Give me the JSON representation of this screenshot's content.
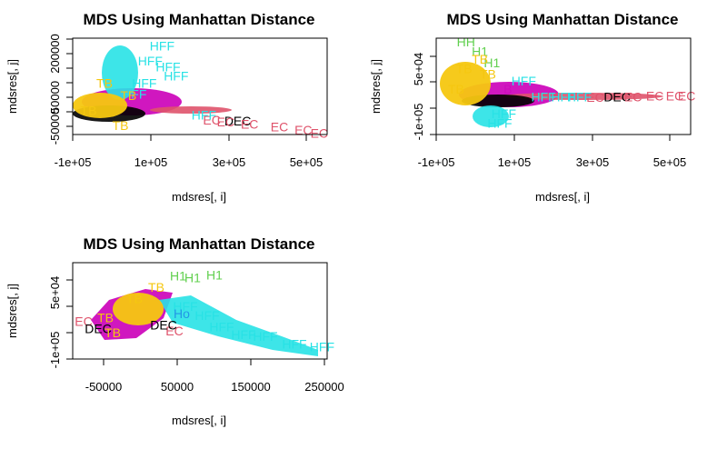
{
  "colors": {
    "black": "#000000",
    "red": "#DF536B",
    "green": "#61D04F",
    "blue": "#2297E6",
    "cyan": "#28E2E5",
    "magenta": "#CD0BBC",
    "gold": "#F5C710",
    "gray": "#9E9E9E"
  },
  "chart_data": [
    {
      "type": "scatter",
      "title": "MDS Using Manhattan Distance",
      "xlabel": "mdsres[, i]",
      "ylabel": "mdsres[, j]",
      "xticks": [
        "-1e+05",
        "1e+05",
        "3e+05",
        "5e+05"
      ],
      "xtick_values": [
        -100000,
        100000,
        300000,
        500000
      ],
      "yticks": [
        "-50000",
        "50000",
        "200000"
      ],
      "ytick_values": [
        -50000,
        50000,
        200000
      ],
      "xlim": [
        -100000,
        540000
      ],
      "ylim": [
        -60000,
        260000
      ],
      "grid": false,
      "points": [
        {
          "label": "DEC",
          "color": "black",
          "x": 315000,
          "y": -15000
        },
        {
          "label": "EC",
          "color": "red",
          "x": 345000,
          "y": -25000
        },
        {
          "label": "EC",
          "color": "red",
          "x": 420000,
          "y": -35000
        },
        {
          "label": "EC",
          "color": "red",
          "x": 480000,
          "y": -45000
        },
        {
          "label": "EC",
          "color": "red",
          "x": 520000,
          "y": -55000
        },
        {
          "label": "EC",
          "color": "red",
          "x": 250000,
          "y": -12000
        },
        {
          "label": "EC",
          "color": "red",
          "x": 285000,
          "y": -18000
        },
        {
          "label": "HFF",
          "color": "cyan",
          "x": 125000,
          "y": 235000
        },
        {
          "label": "HFF",
          "color": "cyan",
          "x": 95000,
          "y": 185000
        },
        {
          "label": "HFF",
          "color": "cyan",
          "x": 140000,
          "y": 165000
        },
        {
          "label": "HFF",
          "color": "cyan",
          "x": 160000,
          "y": 135000
        },
        {
          "label": "HFF",
          "color": "cyan",
          "x": 80000,
          "y": 110000
        },
        {
          "label": "HFF",
          "color": "cyan",
          "x": 55000,
          "y": 75000
        },
        {
          "label": "HFF",
          "color": "cyan",
          "x": 230000,
          "y": 5000
        },
        {
          "label": "TB",
          "color": "gold",
          "x": -20000,
          "y": 110000
        },
        {
          "label": "TB",
          "color": "gold",
          "x": 40000,
          "y": 70000
        },
        {
          "label": "TB",
          "color": "gold",
          "x": 20000,
          "y": -30000
        },
        {
          "label": "TB",
          "color": "gold",
          "x": -60000,
          "y": 20000
        }
      ]
    },
    {
      "type": "scatter",
      "title": "MDS Using Manhattan Distance",
      "xlabel": "mdsres[, i]",
      "ylabel": "mdsres[, j]",
      "xticks": [
        "-1e+05",
        "1e+05",
        "3e+05",
        "5e+05"
      ],
      "xtick_values": [
        -100000,
        100000,
        300000,
        500000
      ],
      "yticks": [
        "-1e+05",
        "5e+04"
      ],
      "ytick_values": [
        -100000,
        50000
      ],
      "xlim": [
        -100000,
        540000
      ],
      "ylim": [
        -100000,
        155000
      ],
      "grid": false,
      "points": [
        {
          "label": "DEC",
          "color": "black",
          "x": 355000,
          "y": 0
        },
        {
          "label": "EC",
          "color": "red",
          "x": 395000,
          "y": 0
        },
        {
          "label": "EC",
          "color": "red",
          "x": 450000,
          "y": 2000
        },
        {
          "label": "EC",
          "color": "red",
          "x": 500000,
          "y": 2000
        },
        {
          "label": "EC",
          "color": "red",
          "x": 530000,
          "y": 2000
        },
        {
          "label": "EC",
          "color": "red",
          "x": 300000,
          "y": -1000
        },
        {
          "label": "HFF",
          "color": "cyan",
          "x": 220000,
          "y": 0
        },
        {
          "label": "HFF",
          "color": "cyan",
          "x": 260000,
          "y": 0
        },
        {
          "label": "HFF",
          "color": "cyan",
          "x": 170000,
          "y": 0
        },
        {
          "label": "HFF",
          "color": "cyan",
          "x": 120000,
          "y": 42000
        },
        {
          "label": "HFF",
          "color": "cyan",
          "x": 70000,
          "y": -45000
        },
        {
          "label": "HFF",
          "color": "cyan",
          "x": 60000,
          "y": -70000
        },
        {
          "label": "HH",
          "color": "green",
          "x": -25000,
          "y": 145000
        },
        {
          "label": "H1",
          "color": "green",
          "x": 40000,
          "y": 90000
        },
        {
          "label": "H1",
          "color": "green",
          "x": 10000,
          "y": 120000
        },
        {
          "label": "TB",
          "color": "gold",
          "x": 10000,
          "y": 100000
        },
        {
          "label": "TB",
          "color": "gold",
          "x": -30000,
          "y": 75000
        },
        {
          "label": "TB",
          "color": "gold",
          "x": -50000,
          "y": 20000
        },
        {
          "label": "TB",
          "color": "gold",
          "x": 30000,
          "y": 60000
        },
        {
          "label": "B",
          "color": "magenta",
          "x": 80000,
          "y": 20000
        }
      ]
    },
    {
      "type": "scatter",
      "title": "MDS Using Manhattan Distance",
      "xlabel": "mdsres[, i]",
      "ylabel": "mdsres[, j]",
      "xticks": [
        "-50000",
        "50000",
        "150000",
        "250000"
      ],
      "xtick_values": [
        -50000,
        50000,
        150000,
        250000
      ],
      "yticks": [
        "-1e+05",
        "5e+04"
      ],
      "ytick_values": [
        -100000,
        50000
      ],
      "xlim": [
        -95000,
        255000
      ],
      "ylim": [
        -100000,
        155000
      ],
      "grid": false,
      "points": [
        {
          "label": "HFF",
          "color": "cyan",
          "x": 248000,
          "y": -68000
        },
        {
          "label": "HFF",
          "color": "cyan",
          "x": 210000,
          "y": -60000
        },
        {
          "label": "HFF",
          "color": "cyan",
          "x": 170000,
          "y": -40000
        },
        {
          "label": "HFF",
          "color": "cyan",
          "x": 140000,
          "y": -35000
        },
        {
          "label": "HFF",
          "color": "cyan",
          "x": 110000,
          "y": -15000
        },
        {
          "label": "HFF",
          "color": "cyan",
          "x": 90000,
          "y": 15000
        },
        {
          "label": "HFF",
          "color": "cyan",
          "x": 60000,
          "y": 40000
        },
        {
          "label": "H1",
          "color": "green",
          "x": 100000,
          "y": 123000
        },
        {
          "label": "H1",
          "color": "green",
          "x": 70000,
          "y": 115000
        },
        {
          "label": "H1",
          "color": "green",
          "x": 50000,
          "y": 120000
        },
        {
          "label": "Ho",
          "color": "blue",
          "x": 55000,
          "y": 20000
        },
        {
          "label": "EC",
          "color": "red",
          "x": -80000,
          "y": 0
        },
        {
          "label": "EC",
          "color": "red",
          "x": 45000,
          "y": -25000
        },
        {
          "label": "DEC",
          "color": "black",
          "x": -60000,
          "y": -20000
        },
        {
          "label": "DEC",
          "color": "black",
          "x": 30000,
          "y": -10000
        },
        {
          "label": "TB",
          "color": "gold",
          "x": -40000,
          "y": -30000
        },
        {
          "label": "TB",
          "color": "gold",
          "x": 20000,
          "y": 90000
        },
        {
          "label": "TB",
          "color": "gold",
          "x": -10000,
          "y": 60000
        },
        {
          "label": "TB",
          "color": "gold",
          "x": -50000,
          "y": 10000
        }
      ]
    }
  ]
}
